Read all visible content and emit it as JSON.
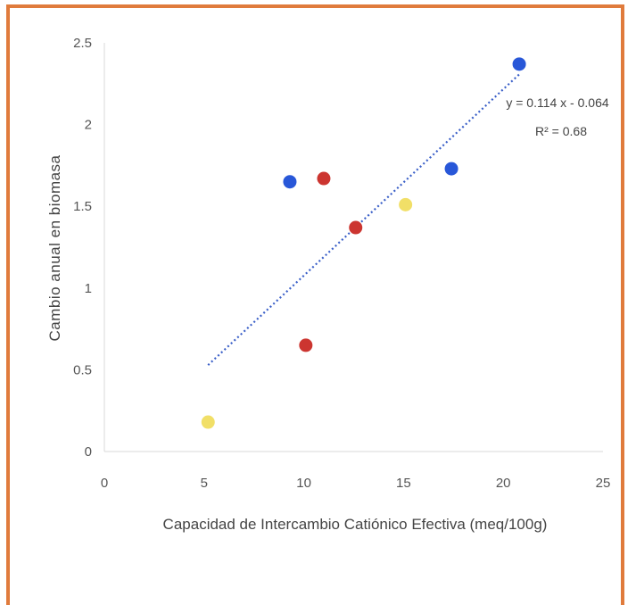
{
  "chart_data": {
    "type": "scatter",
    "xlabel": "Capacidad de Intercambio Catiónico Efectiva (meq/100g)",
    "ylabel": "Cambio anual en biomasa",
    "xlim": [
      0,
      25
    ],
    "ylim": [
      0,
      2.5
    ],
    "x_ticks": [
      "0",
      "5",
      "10",
      "15",
      "20",
      "25"
    ],
    "y_ticks": [
      "0",
      "0.5",
      "1",
      "1.5",
      "2",
      "2.5"
    ],
    "points": [
      {
        "x": 9.3,
        "y": 1.65,
        "color": "#2857d8"
      },
      {
        "x": 17.4,
        "y": 1.73,
        "color": "#2857d8"
      },
      {
        "x": 20.8,
        "y": 2.37,
        "color": "#2857d8"
      },
      {
        "x": 11.0,
        "y": 1.67,
        "color": "#cc3530"
      },
      {
        "x": 12.6,
        "y": 1.37,
        "color": "#cc3530"
      },
      {
        "x": 10.1,
        "y": 0.65,
        "color": "#cc3530"
      },
      {
        "x": 15.1,
        "y": 1.51,
        "color": "#f1df67"
      },
      {
        "x": 5.2,
        "y": 0.18,
        "color": "#f1df67"
      }
    ],
    "trendline": {
      "slope": 0.114,
      "intercept": -0.064,
      "x_range": [
        5.2,
        20.8
      ],
      "color": "#3a5fc8",
      "equation": "y = 0.114 x - 0.064",
      "r2": "R² = 0.68"
    },
    "grid": false,
    "legend": "none"
  },
  "colors": {
    "frame": "#e07b3c"
  }
}
